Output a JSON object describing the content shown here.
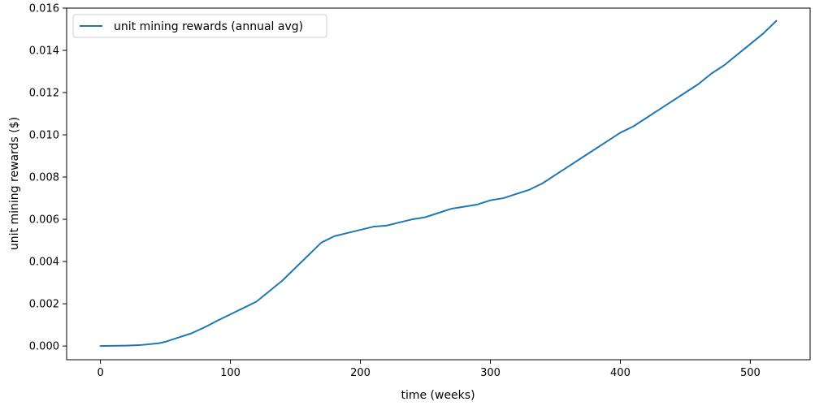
{
  "chart_data": {
    "type": "line",
    "title": "",
    "xlabel": "time (weeks)",
    "ylabel": "unit mining rewards ($)",
    "xlim": [
      -26,
      546
    ],
    "ylim": [
      -0.00065,
      0.016
    ],
    "xticks": [
      0,
      100,
      200,
      300,
      400,
      500
    ],
    "yticks": [
      0.0,
      0.002,
      0.004,
      0.006,
      0.008,
      0.01,
      0.012,
      0.014,
      0.016
    ],
    "ytick_labels": [
      "0.000",
      "0.002",
      "0.004",
      "0.006",
      "0.008",
      "0.010",
      "0.012",
      "0.014",
      "0.016"
    ],
    "grid": false,
    "legend_position": "top-left",
    "series": [
      {
        "name": "unit mining rewards (annual avg)",
        "color": "#1f77b4",
        "x": [
          0,
          10,
          20,
          30,
          40,
          45,
          50,
          55,
          60,
          70,
          80,
          90,
          100,
          110,
          120,
          130,
          140,
          150,
          160,
          170,
          180,
          190,
          200,
          210,
          220,
          230,
          240,
          250,
          260,
          270,
          280,
          290,
          300,
          310,
          320,
          330,
          340,
          350,
          360,
          370,
          380,
          390,
          400,
          410,
          420,
          430,
          440,
          450,
          460,
          470,
          480,
          490,
          500,
          510,
          520
        ],
        "y": [
          0.0,
          1e-05,
          2e-05,
          4e-05,
          0.0001,
          0.00013,
          0.0002,
          0.0003,
          0.0004,
          0.0006,
          0.00088,
          0.0012,
          0.0015,
          0.0018,
          0.0021,
          0.0026,
          0.0031,
          0.0037,
          0.0043,
          0.0049,
          0.0052,
          0.00535,
          0.0055,
          0.00565,
          0.0057,
          0.00585,
          0.006,
          0.0061,
          0.0063,
          0.0065,
          0.0066,
          0.0067,
          0.0069,
          0.007,
          0.0072,
          0.0074,
          0.0077,
          0.0081,
          0.0085,
          0.0089,
          0.0093,
          0.0097,
          0.0101,
          0.0104,
          0.0108,
          0.0112,
          0.0116,
          0.012,
          0.0124,
          0.0129,
          0.0133,
          0.0138,
          0.0143,
          0.0148,
          0.0154
        ]
      }
    ]
  }
}
